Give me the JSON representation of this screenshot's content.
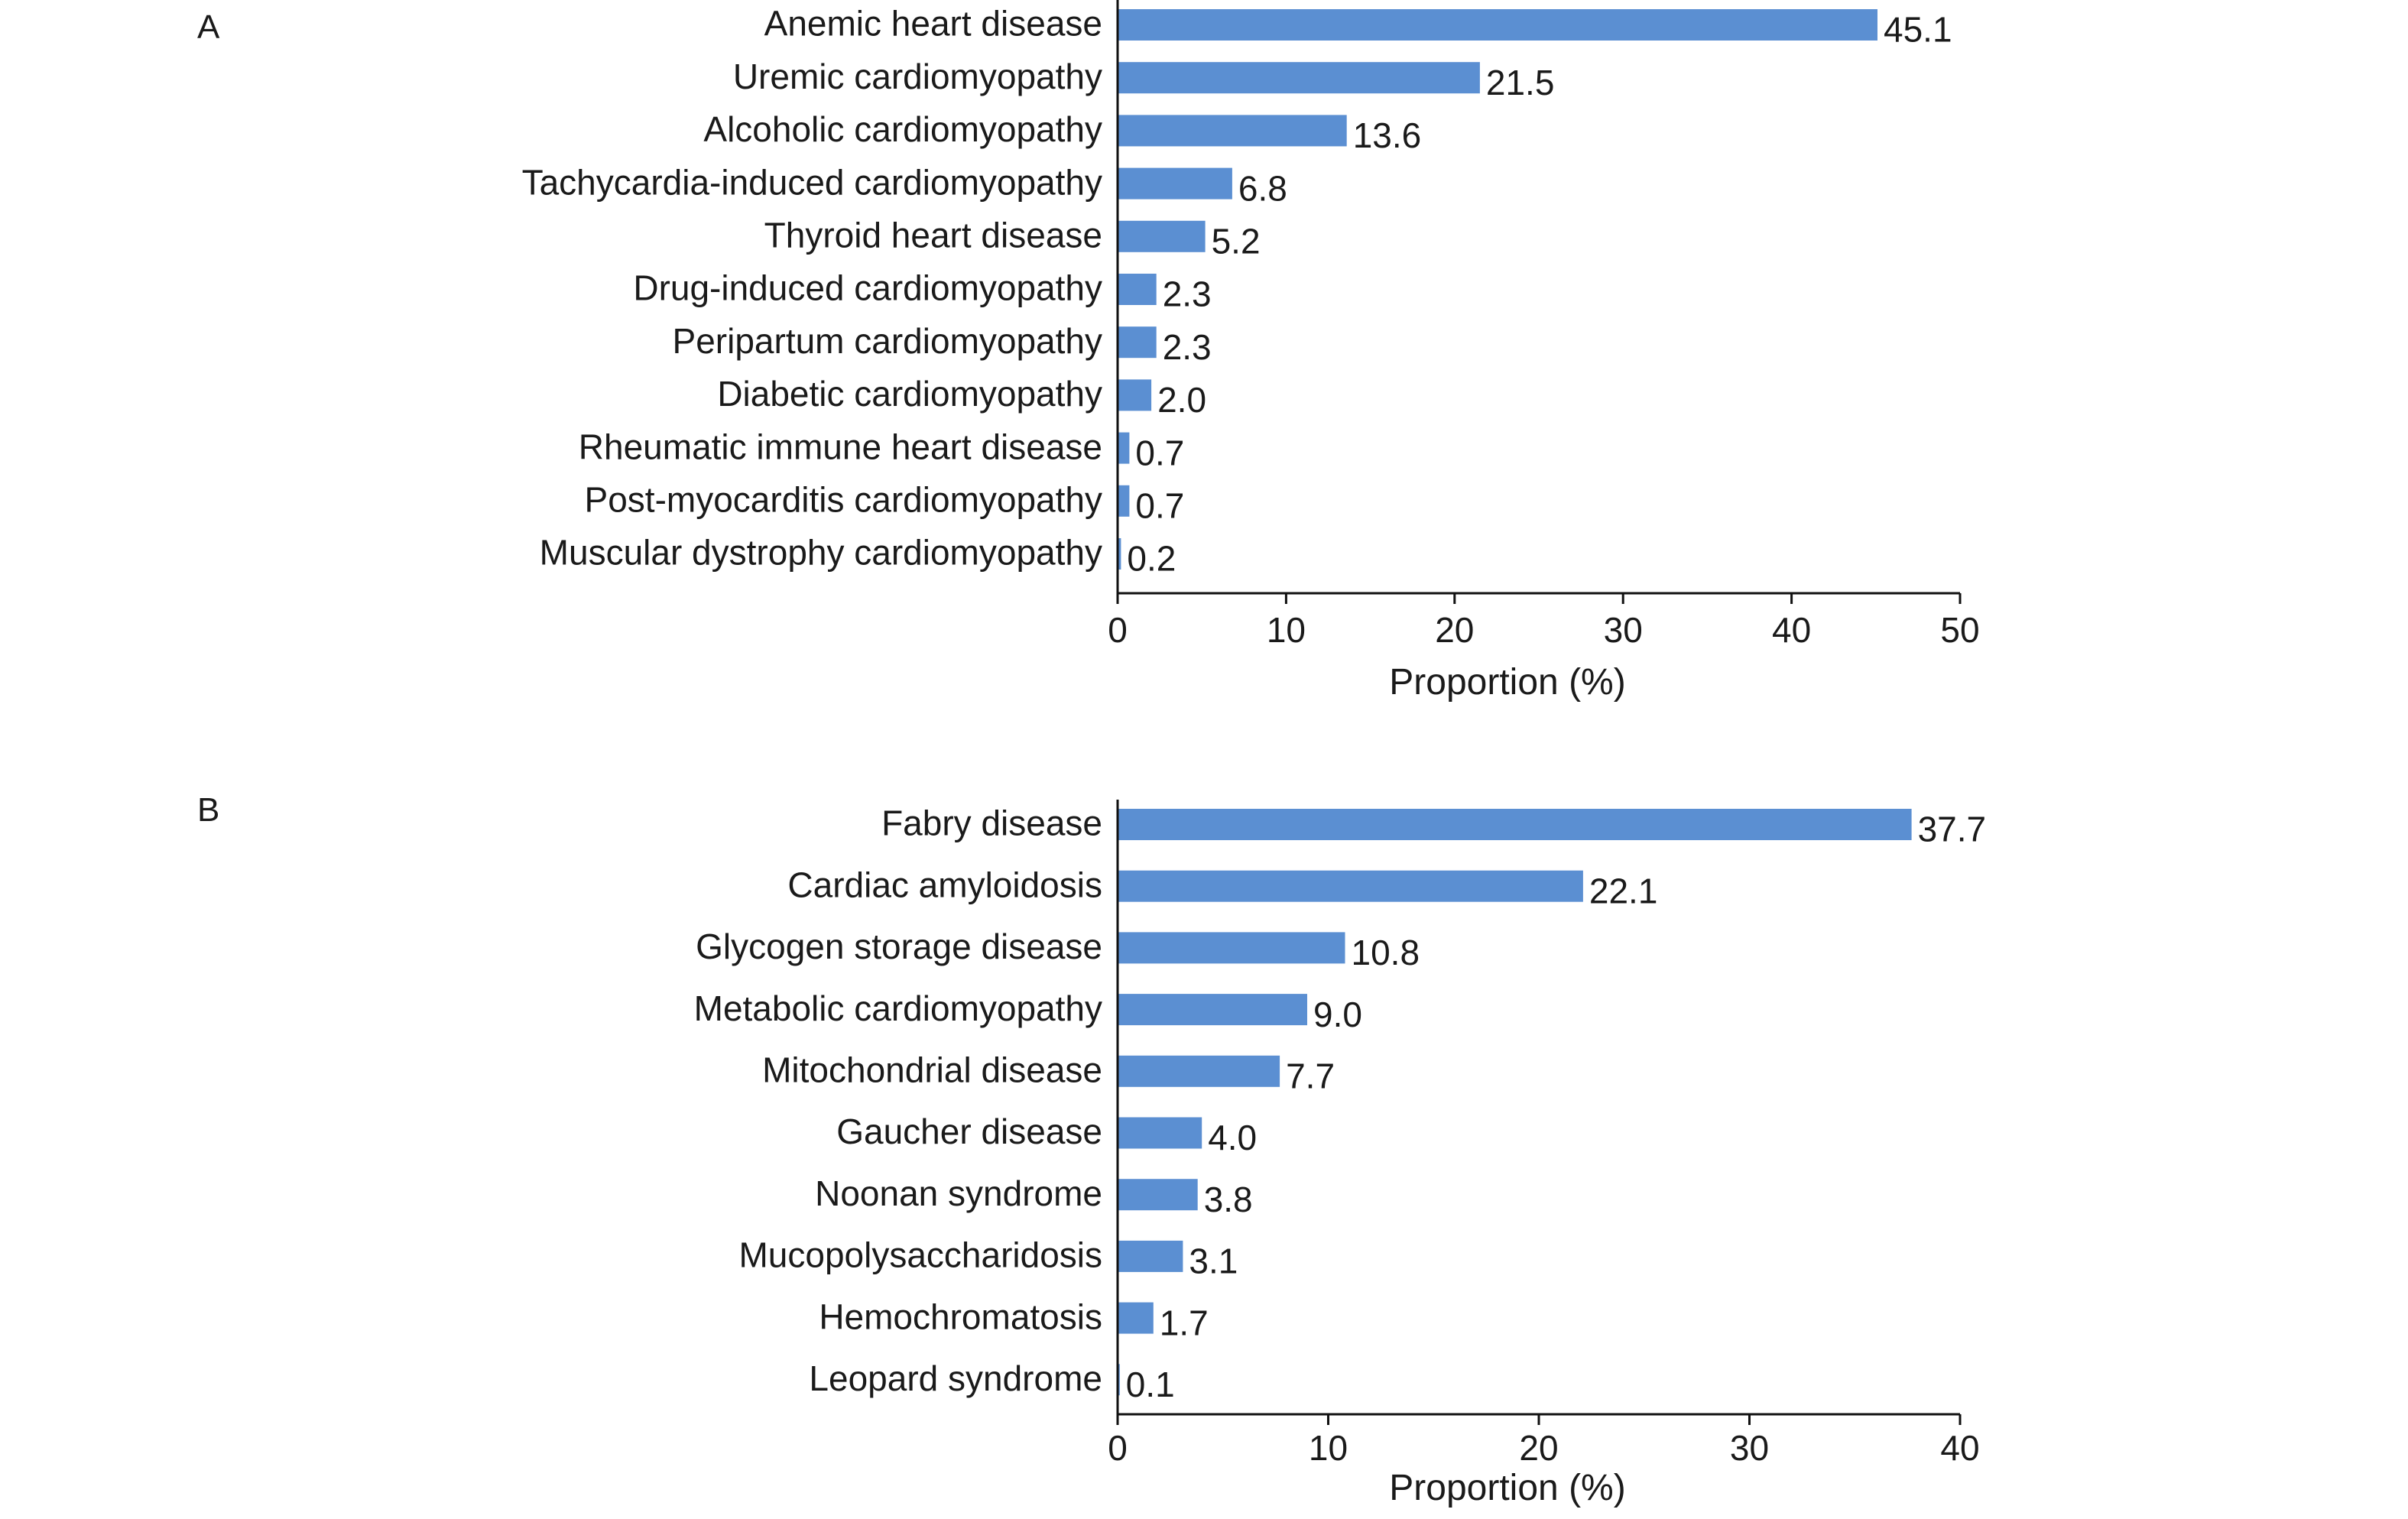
{
  "bar_color": "#5b8fd2",
  "axis_color": "#111111",
  "chart_data": [
    {
      "panel": "A",
      "type": "bar",
      "orientation": "horizontal",
      "categories": [
        "Anemic heart disease",
        "Uremic cardiomyopathy",
        "Alcoholic cardiomyopathy",
        "Tachycardia-induced cardiomyopathy",
        "Thyroid heart disease",
        "Drug-induced cardiomyopathy",
        "Peripartum cardiomyopathy",
        "Diabetic cardiomyopathy",
        "Rheumatic immune heart disease",
        "Post-myocarditis cardiomyopathy",
        "Muscular dystrophy cardiomyopathy"
      ],
      "values": [
        45.1,
        21.5,
        13.6,
        6.8,
        5.2,
        2.3,
        2.3,
        2.0,
        0.7,
        0.7,
        0.2
      ],
      "value_labels": [
        "45.1",
        "21.5",
        "13.6",
        "6.8",
        "5.2",
        "2.3",
        "2.3",
        "2.0",
        "0.7",
        "0.7",
        "0.2"
      ],
      "xlabel": "Proportion (%)",
      "ylabel": "",
      "xlim": [
        0,
        50
      ],
      "xticks": [
        0,
        10,
        20,
        30,
        40,
        50
      ],
      "grid": false,
      "legend": "none"
    },
    {
      "panel": "B",
      "type": "bar",
      "orientation": "horizontal",
      "categories": [
        "Fabry disease",
        "Cardiac amyloidosis",
        "Glycogen storage disease",
        "Metabolic cardiomyopathy",
        "Mitochondrial disease",
        "Gaucher disease",
        "Noonan syndrome",
        "Mucopolysaccharidosis",
        "Hemochromatosis",
        "Leopard syndrome"
      ],
      "values": [
        37.7,
        22.1,
        10.8,
        9.0,
        7.7,
        4.0,
        3.8,
        3.1,
        1.7,
        0.1
      ],
      "value_labels": [
        "37.7",
        "22.1",
        "10.8",
        "9.0",
        "7.7",
        "4.0",
        "3.8",
        "3.1",
        "1.7",
        "0.1"
      ],
      "xlabel": "Proportion (%)",
      "ylabel": "",
      "xlim": [
        0,
        40
      ],
      "xticks": [
        0,
        10,
        20,
        30,
        40
      ],
      "grid": false,
      "legend": "none"
    }
  ]
}
